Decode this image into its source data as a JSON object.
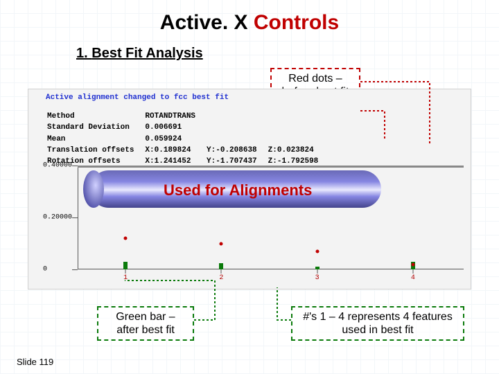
{
  "title_part1": "Active. X ",
  "title_part2": "Controls",
  "subtitle_prefix": "1. ",
  "subtitle_text": "Best Fit Analysis",
  "callouts": {
    "red_dots": "Red dots – before best fit",
    "green_bar": "Green bar – after best fit",
    "numbers": "#'s 1 – 4 represents 4 features used in best fit"
  },
  "slide_number": "Slide 119",
  "screenshot": {
    "header_line": "Active alignment changed to fcc best fit",
    "stats": {
      "rows": [
        [
          "Method",
          "ROTANDTRANS",
          "",
          ""
        ],
        [
          "Standard Deviation",
          "0.006691",
          "",
          ""
        ],
        [
          "Mean",
          "0.059924",
          "",
          ""
        ],
        [
          "Translation offsets",
          "X:0.189824",
          "Y:-0.208638",
          "Z:0.023824"
        ],
        [
          "Rotation offsets",
          "X:1.241452",
          "Y:-1.707437",
          "Z:-1.792598"
        ]
      ]
    }
  },
  "chart": {
    "type": "bar+scatter",
    "categories": [
      "1",
      "2",
      "3",
      "4"
    ],
    "bars": [
      0.03,
      0.025,
      0.01,
      0.03
    ],
    "dots": [
      0.12,
      0.1,
      0.07,
      0.02
    ],
    "ylim": [
      0,
      0.4
    ],
    "yticks": [
      0,
      0.2,
      0.4
    ],
    "ytick_labels": [
      "0",
      "0.20000",
      "0.40000"
    ],
    "bar_color": "#0a7a0a",
    "dot_color": "#c00000",
    "toprule_color": "#888888",
    "background": "#f3f3f3"
  },
  "colors": {
    "title_accent": "#c00000",
    "red_border": "#c00000",
    "green_border": "#0a7a0a"
  },
  "connectors": {
    "red_color": "#c00000",
    "green_color": "#0a7a0a"
  }
}
